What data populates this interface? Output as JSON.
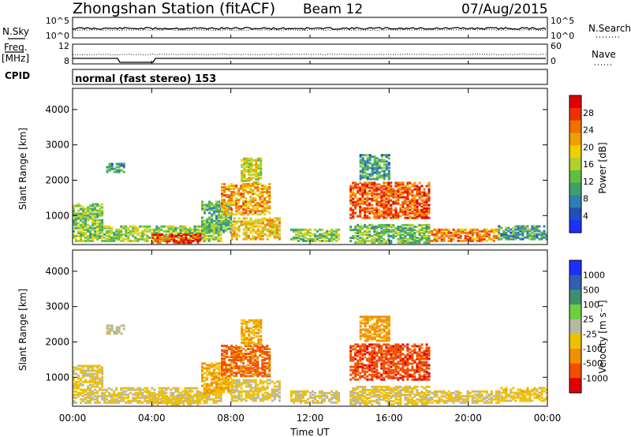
{
  "header": {
    "station": "Zhongshan Station (fitACF)",
    "beam": "Beam 12",
    "date": "07/Aug/2015"
  },
  "top_panels": {
    "nsky_label": "N.Sky",
    "nsearch_label": "N.Search",
    "freq_label_line1": "Freq.",
    "freq_label_line2": "[MHz]",
    "nave_label": "Nave",
    "cpid_label": "CPID",
    "cpid_value": "normal (fast stereo) 153",
    "noise_left_ticks": [
      "10^5",
      "10^0"
    ],
    "noise_right_ticks": [
      "10^5",
      "10^0"
    ],
    "freq_left_ticks": [
      "12",
      "8"
    ],
    "nave_right_ticks": [
      "60",
      "0"
    ]
  },
  "x_axis": {
    "label": "Time UT",
    "ticks": [
      "00:00",
      "04:00",
      "08:00",
      "12:00",
      "16:00",
      "20:00",
      "00:00"
    ]
  },
  "y_axis": {
    "label": "Slant Range [km]",
    "ticks": [
      "1000",
      "2000",
      "3000",
      "4000"
    ]
  },
  "colorbars": {
    "power": {
      "label": "Power [dB]",
      "ticks": [
        "4",
        "8",
        "12",
        "16",
        "20",
        "24",
        "28"
      ],
      "colors": [
        "#1f2fff",
        "#1f4fb8",
        "#2f7fb0",
        "#3f9f6f",
        "#5fbf3f",
        "#afd02f",
        "#f0d000",
        "#f0a000",
        "#f07000",
        "#f03000",
        "#e00000"
      ]
    },
    "velocity": {
      "label": "Velocity [m s⁻¹]",
      "ticks": [
        "1000",
        "500",
        "100",
        "25",
        "-25",
        "-100",
        "-500",
        "-1000"
      ],
      "colors": [
        "#1f2fff",
        "#2f5fb0",
        "#3f8f6f",
        "#6fcf3f",
        "#b8b8a0",
        "#f0c000",
        "#f09000",
        "#f05000",
        "#e00000"
      ]
    }
  },
  "chart_data": {
    "type": "heatmap",
    "title": "Zhongshan Station (fitACF) Beam 12 07/Aug/2015",
    "xlabel": "Time UT",
    "ylabel": "Slant Range [km]",
    "xlim": [
      0,
      24
    ],
    "ylim": [
      180,
      4600
    ],
    "panels": [
      {
        "name": "Power",
        "unit": "dB",
        "range": [
          0,
          32
        ],
        "regions": [
          {
            "t": [
              0.0,
              7.5
            ],
            "r": [
              250,
              700
            ],
            "value": 15
          },
          {
            "t": [
              0.0,
              1.5
            ],
            "r": [
              700,
              1300
            ],
            "value": 14
          },
          {
            "t": [
              1.7,
              2.6
            ],
            "r": [
              2200,
              2450
            ],
            "value": 9
          },
          {
            "t": [
              4.0,
              6.5
            ],
            "r": [
              200,
              450
            ],
            "value": 28
          },
          {
            "t": [
              6.5,
              8.0
            ],
            "r": [
              500,
              1400
            ],
            "value": 12
          },
          {
            "t": [
              7.5,
              10.0
            ],
            "r": [
              1000,
              1900
            ],
            "value": 22
          },
          {
            "t": [
              8.0,
              10.5
            ],
            "r": [
              300,
              900
            ],
            "value": 20
          },
          {
            "t": [
              8.5,
              9.5
            ],
            "r": [
              1900,
              2600
            ],
            "value": 18
          },
          {
            "t": [
              11.0,
              13.5
            ],
            "r": [
              250,
              600
            ],
            "value": 14
          },
          {
            "t": [
              14.0,
              18.0
            ],
            "r": [
              900,
              1900
            ],
            "value": 26
          },
          {
            "t": [
              14.5,
              16.0
            ],
            "r": [
              2000,
              2700
            ],
            "value": 10
          },
          {
            "t": [
              14.0,
              18.0
            ],
            "r": [
              200,
              700
            ],
            "value": 13
          },
          {
            "t": [
              18.0,
              21.5
            ],
            "r": [
              250,
              600
            ],
            "value": 24
          },
          {
            "t": [
              21.5,
              24.0
            ],
            "r": [
              300,
              700
            ],
            "value": 10
          }
        ]
      },
      {
        "name": "Velocity",
        "unit": "m s-1",
        "range": [
          -1000,
          1000
        ],
        "regions": [
          {
            "t": [
              0.0,
              7.5
            ],
            "r": [
              250,
              700
            ],
            "value": -150
          },
          {
            "t": [
              0.0,
              1.5
            ],
            "r": [
              700,
              1300
            ],
            "value": -100
          },
          {
            "t": [
              1.7,
              2.6
            ],
            "r": [
              2200,
              2450
            ],
            "value": 0
          },
          {
            "t": [
              4.0,
              6.5
            ],
            "r": [
              200,
              450
            ],
            "value": -200
          },
          {
            "t": [
              6.5,
              8.0
            ],
            "r": [
              500,
              1400
            ],
            "value": -300
          },
          {
            "t": [
              7.5,
              10.0
            ],
            "r": [
              1000,
              1900
            ],
            "value": -600
          },
          {
            "t": [
              8.0,
              10.5
            ],
            "r": [
              300,
              900
            ],
            "value": -150
          },
          {
            "t": [
              8.5,
              9.5
            ],
            "r": [
              1900,
              2600
            ],
            "value": -300
          },
          {
            "t": [
              11.0,
              13.5
            ],
            "r": [
              250,
              600
            ],
            "value": -100
          },
          {
            "t": [
              14.0,
              18.0
            ],
            "r": [
              900,
              1900
            ],
            "value": -700
          },
          {
            "t": [
              14.5,
              16.0
            ],
            "r": [
              2000,
              2700
            ],
            "value": -400
          },
          {
            "t": [
              14.0,
              18.0
            ],
            "r": [
              200,
              700
            ],
            "value": -150
          },
          {
            "t": [
              18.0,
              21.5
            ],
            "r": [
              250,
              600
            ],
            "value": -150
          },
          {
            "t": [
              21.5,
              24.0
            ],
            "r": [
              300,
              700
            ],
            "value": -200
          }
        ]
      }
    ]
  }
}
